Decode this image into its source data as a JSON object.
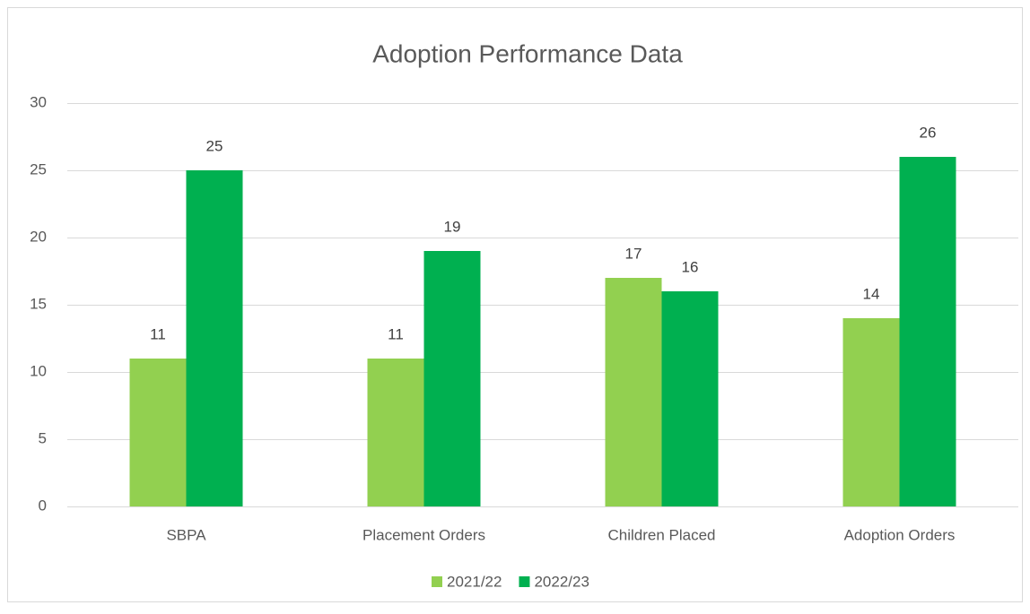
{
  "chart_data": {
    "type": "bar",
    "title": "Adoption Performance Data",
    "categories": [
      "SBPA",
      "Placement Orders",
      "Children Placed",
      "Adoption Orders"
    ],
    "series": [
      {
        "name": "2021/22",
        "color": "#92d050",
        "values": [
          11,
          11,
          17,
          14
        ]
      },
      {
        "name": "2022/23",
        "color": "#00b050",
        "values": [
          25,
          19,
          16,
          26
        ]
      }
    ],
    "ylim": [
      0,
      30
    ],
    "yticks": [
      0,
      5,
      10,
      15,
      20,
      25,
      30
    ],
    "grid": true,
    "legend": "bottom"
  }
}
